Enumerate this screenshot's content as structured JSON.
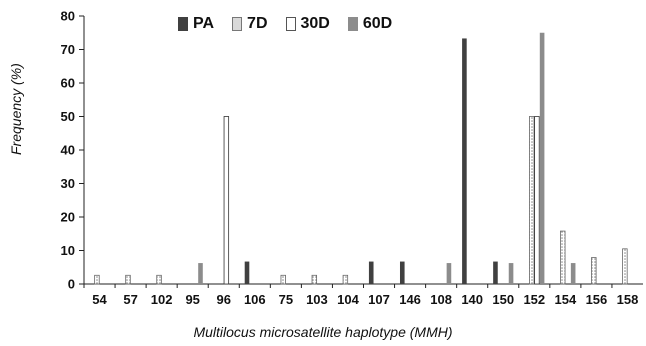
{
  "chart_data": {
    "type": "bar",
    "title": "",
    "xlabel": "Multilocus microsatellite haplotype (MMH)",
    "ylabel": "Frequency (%)",
    "ylim": [
      0,
      80
    ],
    "yticks": [
      0,
      10,
      20,
      30,
      40,
      50,
      60,
      70,
      80
    ],
    "grid": false,
    "legend_position": "top-left",
    "categories": [
      "54",
      "57",
      "102",
      "95",
      "96",
      "106",
      "75",
      "103",
      "104",
      "107",
      "146",
      "108",
      "140",
      "150",
      "152",
      "154",
      "156",
      "158"
    ],
    "series": [
      {
        "name": "PA",
        "color": "#404040",
        "pattern": "solid",
        "values": [
          0,
          0,
          0,
          0,
          0,
          6.7,
          0,
          0,
          0,
          6.7,
          6.7,
          0,
          73.3,
          6.7,
          0,
          0,
          0,
          0
        ]
      },
      {
        "name": "7D",
        "color": "#d9d9d9",
        "pattern": "dotted",
        "values": [
          2.6,
          2.6,
          2.6,
          0,
          0,
          0,
          2.6,
          2.6,
          2.6,
          0,
          0,
          0,
          0,
          0,
          50,
          15.8,
          7.9,
          10.5
        ]
      },
      {
        "name": "30D",
        "color": "#ffffff",
        "pattern": "outline",
        "values": [
          0,
          0,
          0,
          0,
          50,
          0,
          0,
          0,
          0,
          0,
          0,
          0,
          0,
          0,
          50,
          0,
          0,
          0
        ]
      },
      {
        "name": "60D",
        "color": "#8c8c8c",
        "pattern": "solid",
        "values": [
          0,
          0,
          0,
          6.25,
          0,
          0,
          0,
          0,
          0,
          0,
          0,
          6.25,
          0,
          6.25,
          75,
          6.25,
          0,
          0
        ]
      }
    ]
  }
}
